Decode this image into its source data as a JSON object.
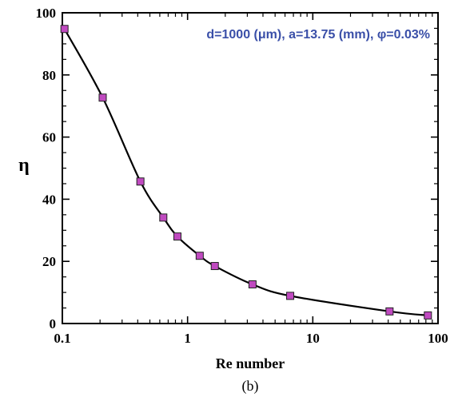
{
  "chart_data": {
    "type": "scatter",
    "title": "",
    "xlabel": "Re number",
    "ylabel": "η",
    "xscale": "log",
    "xlim": [
      0.1,
      100
    ],
    "ylim": [
      0,
      100
    ],
    "xticks": [
      {
        "value": 0.1,
        "label": "0.1"
      },
      {
        "value": 1,
        "label": "1"
      },
      {
        "value": 10,
        "label": "10"
      },
      {
        "value": 100,
        "label": "100"
      }
    ],
    "yticks": [
      {
        "value": 0,
        "label": "0"
      },
      {
        "value": 20,
        "label": "20"
      },
      {
        "value": 40,
        "label": "40"
      },
      {
        "value": 60,
        "label": "60"
      },
      {
        "value": 80,
        "label": "80"
      },
      {
        "value": 100,
        "label": "100"
      }
    ],
    "grid": false,
    "annotation": "d=1000 (μm), a=13.75 (mm), φ=0.03%",
    "caption": "(b)",
    "series": [
      {
        "marker": "square",
        "marker_color": "#c04ac0",
        "line_color": "#000000",
        "points": [
          {
            "x": 0.104,
            "y": 94.8
          },
          {
            "x": 0.21,
            "y": 72.7
          },
          {
            "x": 0.42,
            "y": 45.7
          },
          {
            "x": 0.64,
            "y": 34.1
          },
          {
            "x": 0.83,
            "y": 28.0
          },
          {
            "x": 1.25,
            "y": 21.8
          },
          {
            "x": 1.65,
            "y": 18.5
          },
          {
            "x": 3.3,
            "y": 12.6
          },
          {
            "x": 6.6,
            "y": 8.9
          },
          {
            "x": 41,
            "y": 3.9
          },
          {
            "x": 83,
            "y": 2.6
          }
        ]
      }
    ]
  },
  "colors": {
    "annotation": "#3a4fa8",
    "marker_fill": "#c04ac0",
    "curve": "#000000"
  }
}
